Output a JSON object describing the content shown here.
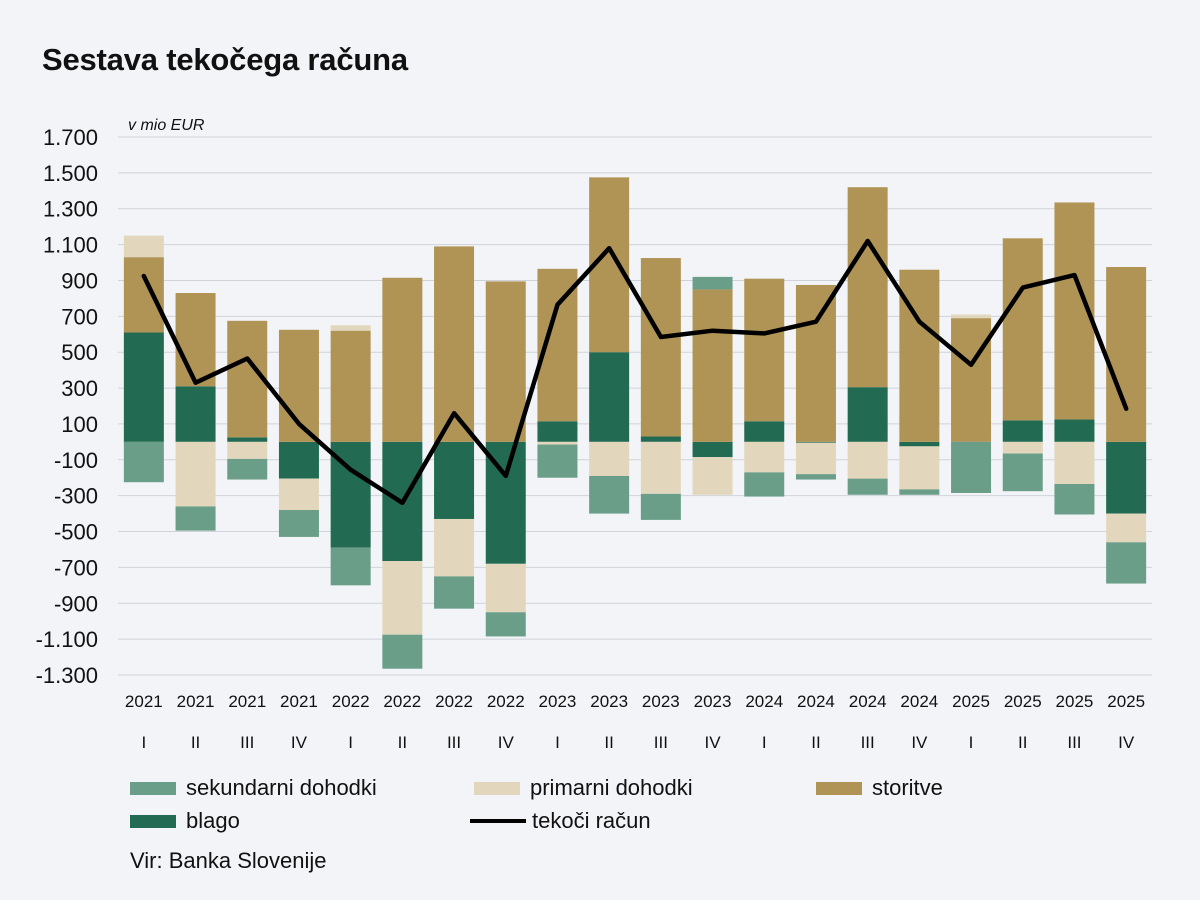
{
  "title": "Sestava tekočega računa",
  "unit_label": "v mio EUR",
  "source": "Vir: Banka Slovenije",
  "colors": {
    "sekundarni": "#6a9e88",
    "primarni": "#e2d7bd",
    "storitve": "#b09456",
    "blago": "#226b52",
    "tekoci": "#000000",
    "grid": "#cfd3d9",
    "background": "#f2f4f8"
  },
  "legend": [
    {
      "key": "sekundarni",
      "label": "sekundarni dohodki"
    },
    {
      "key": "primarni",
      "label": "primarni dohodki"
    },
    {
      "key": "storitve",
      "label": "storitve"
    },
    {
      "key": "blago",
      "label": "blago"
    },
    {
      "key": "tekoci",
      "label": "tekoči račun"
    }
  ],
  "chart_data": {
    "type": "bar",
    "stacked": true,
    "title": "Sestava tekočega računa",
    "ylabel": "v mio EUR",
    "ylim": [
      -1300,
      1700
    ],
    "yticks": [
      1700,
      1500,
      1300,
      1100,
      900,
      700,
      500,
      300,
      100,
      -100,
      -300,
      -500,
      -700,
      -900,
      -1100,
      -1300
    ],
    "ytick_labels": [
      "1.700",
      "1.500",
      "1.300",
      "1.100",
      "900",
      "700",
      "500",
      "300",
      "100",
      "-100",
      "-300",
      "-500",
      "-700",
      "-900",
      "-1.100",
      "-1.300"
    ],
    "years": [
      "2021",
      "2021",
      "2021",
      "2021",
      "2022",
      "2022",
      "2022",
      "2022",
      "2023",
      "2023",
      "2023",
      "2023",
      "2024",
      "2024",
      "2024",
      "2024",
      "2025",
      "2025",
      "2025",
      "2025"
    ],
    "quarters": [
      "I",
      "II",
      "III",
      "IV",
      "I",
      "II",
      "III",
      "IV",
      "I",
      "II",
      "III",
      "IV",
      "I",
      "II",
      "III",
      "IV",
      "I",
      "II",
      "III",
      "IV"
    ],
    "series": [
      {
        "name": "blago",
        "key": "blago",
        "values": [
          610,
          310,
          25,
          -205,
          -590,
          -665,
          -430,
          -680,
          115,
          500,
          30,
          -85,
          115,
          -5,
          305,
          -25,
          0,
          120,
          125,
          -400
        ]
      },
      {
        "name": "storitve",
        "key": "storitve",
        "values": [
          420,
          520,
          650,
          625,
          620,
          915,
          1090,
          895,
          850,
          975,
          995,
          850,
          795,
          875,
          1115,
          960,
          690,
          1015,
          1210,
          975
        ]
      },
      {
        "name": "primarni dohodki",
        "key": "primarni",
        "values": [
          120,
          -360,
          -95,
          -175,
          30,
          -410,
          -320,
          -270,
          -15,
          -190,
          -290,
          -210,
          -170,
          -175,
          -205,
          -240,
          20,
          -65,
          -235,
          -160
        ]
      },
      {
        "name": "sekundarni dohodki",
        "key": "sekundarni",
        "values": [
          -225,
          -135,
          -115,
          -150,
          -210,
          -190,
          -180,
          -135,
          -185,
          -210,
          -145,
          70,
          -135,
          -30,
          -90,
          -30,
          -285,
          -210,
          -170,
          -230
        ]
      }
    ],
    "line": {
      "name": "tekoči račun",
      "values": [
        925,
        330,
        465,
        100,
        -155,
        -340,
        160,
        -190,
        765,
        1080,
        585,
        620,
        605,
        670,
        1120,
        670,
        430,
        860,
        930,
        185
      ]
    },
    "grid": "horizontal",
    "legend_position": "bottom"
  }
}
